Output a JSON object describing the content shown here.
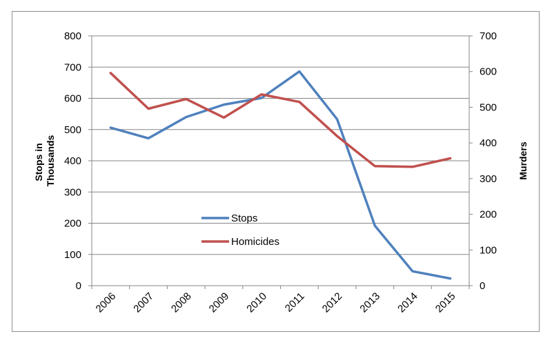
{
  "chart_data": {
    "type": "line",
    "title": "",
    "x": [
      "2006",
      "2007",
      "2008",
      "2009",
      "2010",
      "2011",
      "2012",
      "2013",
      "2014",
      "2015"
    ],
    "left_axis": {
      "label": "Stops in Thousands",
      "label_lines": [
        "Stops in",
        "Thousands"
      ],
      "ylim": [
        0,
        800
      ],
      "ticks": [
        0,
        100,
        200,
        300,
        400,
        500,
        600,
        700,
        800
      ]
    },
    "right_axis": {
      "label": "Murders",
      "ylim": [
        0,
        700
      ],
      "ticks": [
        0,
        100,
        200,
        300,
        400,
        500,
        600,
        700
      ]
    },
    "series": [
      {
        "name": "Stops",
        "axis": "left",
        "color": "#4f81bd",
        "values": [
          506,
          472,
          540,
          580,
          601,
          686,
          533,
          192,
          46,
          23
        ]
      },
      {
        "name": "Homicides",
        "axis": "right",
        "color": "#c0504d",
        "values": [
          596,
          496,
          523,
          471,
          536,
          515,
          419,
          335,
          333,
          357
        ]
      }
    ],
    "grid": "horizontal",
    "legend_position": "inside-center-left"
  }
}
